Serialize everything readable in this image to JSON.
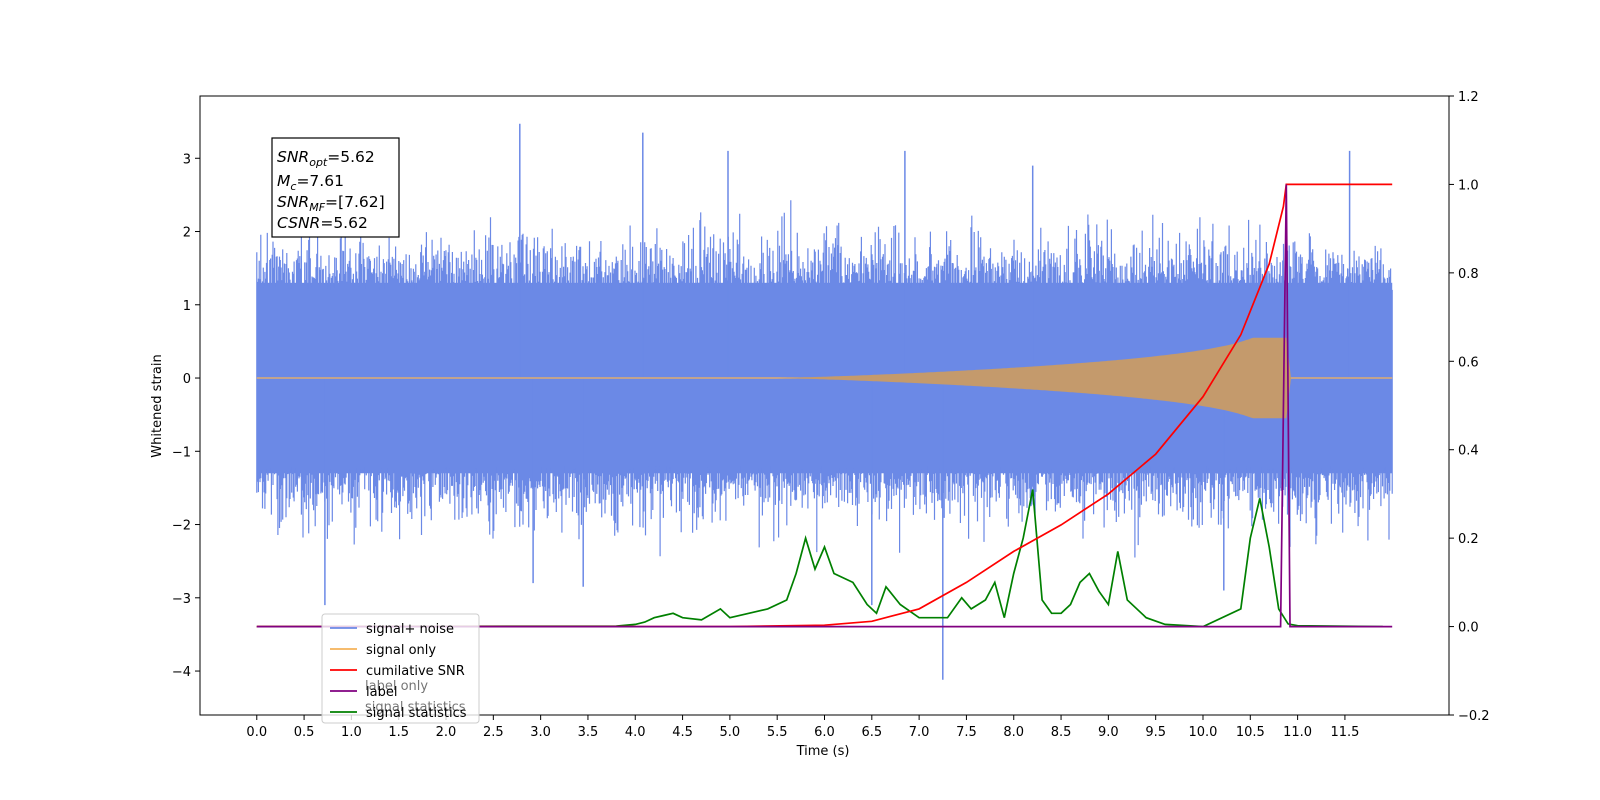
{
  "chart_data": {
    "type": "line",
    "xlabel": "Time (s)",
    "ylabel": "Whitened strain",
    "xlim": [
      -0.6,
      12.6
    ],
    "ylim": [
      -4.6,
      3.85
    ],
    "ylim_right": [
      -0.2,
      1.2
    ],
    "x_ticks": [
      0.0,
      0.5,
      1.0,
      1.5,
      2.0,
      2.5,
      3.0,
      3.5,
      4.0,
      4.5,
      5.0,
      5.5,
      6.0,
      6.5,
      7.0,
      7.5,
      8.0,
      8.5,
      9.0,
      9.5,
      10.0,
      10.5,
      11.0,
      11.5
    ],
    "x_tick_labels": [
      "0.0",
      "0.5",
      "1.0",
      "1.5",
      "2.0",
      "2.5",
      "3.0",
      "3.5",
      "4.0",
      "4.5",
      "5.0",
      "5.5",
      "6.0",
      "6.5",
      "7.0",
      "7.5",
      "8.0",
      "8.5",
      "9.0",
      "9.5",
      "10.0",
      "10.5",
      "11.0",
      "11.5"
    ],
    "y_ticks": [
      3,
      2,
      1,
      0,
      -1,
      -2,
      -3,
      -4
    ],
    "y_tick_labels": [
      "3",
      "2",
      "1",
      "0",
      "−1",
      "−2",
      "−3",
      "−4"
    ],
    "y_right_ticks": [
      1.2,
      1.0,
      0.8,
      0.6,
      0.4,
      0.2,
      0.0,
      -0.2
    ],
    "y_right_tick_labels": [
      "1.2",
      "1.0",
      "0.8",
      "0.6",
      "0.4",
      "0.2",
      "0.0",
      "−0.2"
    ],
    "grid": false,
    "legend_position": "bottom-left",
    "colors": {
      "signal_noise": "#6b89e6",
      "signal_only": "#f5b35a",
      "signal_only_overlap": "#c49a6c",
      "cumulative_snr": "#ff0000",
      "label": "#800080",
      "signal_statistics": "#008000"
    },
    "annotation": {
      "snr_opt": {
        "symbol": "SNR",
        "sub": "opt",
        "value": "=5.62"
      },
      "mc": {
        "symbol": "M",
        "sub": "c",
        "value": "=7.61"
      },
      "snr_mf": {
        "symbol": "SNR",
        "sub": "MF",
        "value": "=[7.62]"
      },
      "csnr": {
        "symbol": "CSNR",
        "sub": "",
        "value": "=5.62"
      }
    },
    "legend": [
      {
        "key": "signal_noise",
        "label": "signal+ noise"
      },
      {
        "key": "signal_only",
        "label": "signal only"
      },
      {
        "key": "cumulative_snr",
        "label": "cumilative SNR"
      },
      {
        "key": "label",
        "label": "label"
      },
      {
        "key": "signal_statistics",
        "label": "signal statistics"
      }
    ],
    "legend_hidden_text": [
      "label only",
      "signal statistics"
    ],
    "signal_noise": {
      "x_range": [
        0.0,
        12.0
      ],
      "band_lower": -1.3,
      "band_upper": 1.3,
      "spikes": [
        {
          "x": 2.78,
          "y": 3.47
        },
        {
          "x": 4.08,
          "y": 3.35
        },
        {
          "x": 7.25,
          "y": -4.12
        },
        {
          "x": 0.72,
          "y": -3.1
        },
        {
          "x": 2.92,
          "y": -2.8
        },
        {
          "x": 3.45,
          "y": -2.85
        },
        {
          "x": 6.85,
          "y": 3.1
        },
        {
          "x": 11.55,
          "y": 3.1
        },
        {
          "x": 6.5,
          "y": -3.1
        },
        {
          "x": 10.22,
          "y": -2.9
        },
        {
          "x": 8.2,
          "y": 2.9
        },
        {
          "x": 4.98,
          "y": 3.1
        }
      ]
    },
    "signal_only": {
      "x_range": [
        0.0,
        12.0
      ],
      "merger_time": 10.88,
      "peak_amplitude": 0.55
    },
    "cumulative_snr": {
      "x": [
        0.0,
        5.0,
        6.0,
        6.5,
        7.0,
        7.5,
        8.0,
        8.5,
        9.0,
        9.5,
        10.0,
        10.4,
        10.7,
        10.85,
        10.88,
        12.0
      ],
      "y": [
        0.0,
        0.0,
        0.003,
        0.012,
        0.04,
        0.1,
        0.17,
        0.23,
        0.3,
        0.39,
        0.52,
        0.66,
        0.82,
        0.95,
        1.0,
        1.0
      ]
    },
    "label": {
      "x": [
        0.0,
        10.82,
        10.88,
        10.92,
        12.0
      ],
      "y": [
        0.0,
        0.0,
        1.0,
        0.0,
        0.0
      ]
    },
    "signal_statistics": {
      "x": [
        0.0,
        3.8,
        4.0,
        4.1,
        4.2,
        4.3,
        4.4,
        4.5,
        4.7,
        4.9,
        5.0,
        5.2,
        5.4,
        5.6,
        5.7,
        5.8,
        5.9,
        6.0,
        6.1,
        6.3,
        6.45,
        6.55,
        6.65,
        6.8,
        7.0,
        7.3,
        7.45,
        7.55,
        7.7,
        7.8,
        7.9,
        8.0,
        8.1,
        8.2,
        8.3,
        8.4,
        8.5,
        8.6,
        8.7,
        8.8,
        8.9,
        9.0,
        9.1,
        9.2,
        9.4,
        9.6,
        10.0,
        10.4,
        10.5,
        10.6,
        10.7,
        10.8,
        10.9,
        11.0,
        11.9
      ],
      "y": [
        0.0,
        0.001,
        0.005,
        0.01,
        0.02,
        0.025,
        0.03,
        0.02,
        0.015,
        0.04,
        0.02,
        0.03,
        0.04,
        0.06,
        0.12,
        0.2,
        0.13,
        0.18,
        0.12,
        0.1,
        0.05,
        0.03,
        0.09,
        0.05,
        0.02,
        0.02,
        0.065,
        0.04,
        0.06,
        0.1,
        0.02,
        0.12,
        0.2,
        0.31,
        0.06,
        0.03,
        0.03,
        0.05,
        0.1,
        0.12,
        0.08,
        0.05,
        0.17,
        0.06,
        0.02,
        0.005,
        0.0,
        0.04,
        0.2,
        0.29,
        0.18,
        0.04,
        0.006,
        0.002,
        0.0
      ]
    }
  }
}
